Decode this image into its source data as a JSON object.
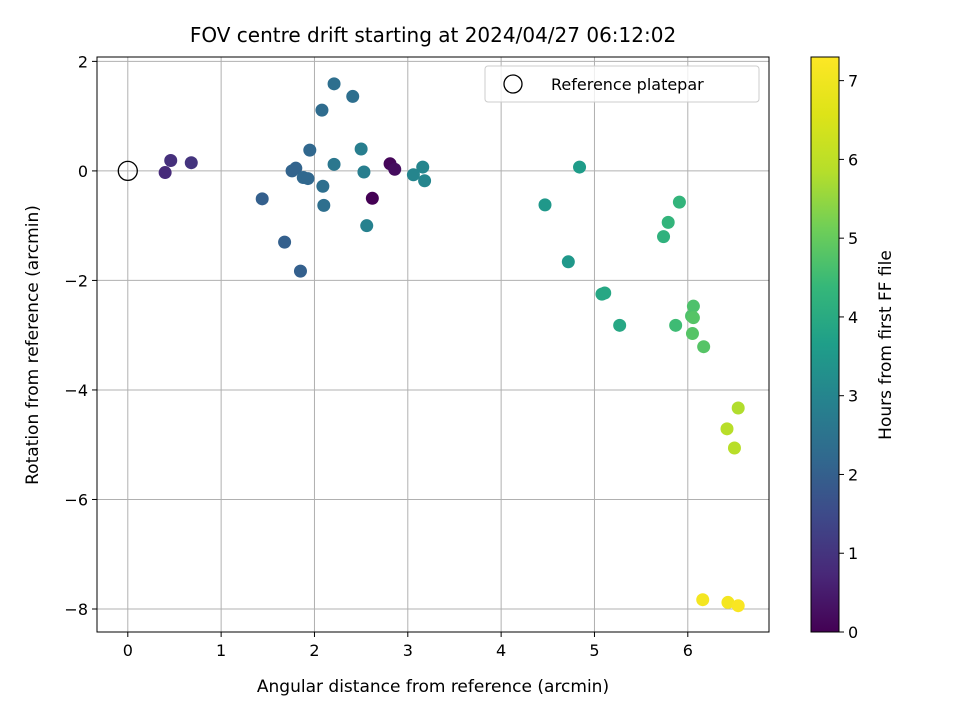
{
  "chart_data": {
    "type": "scatter",
    "title": "FOV centre drift starting at 2024/04/27 06:12:02",
    "xlabel": "Angular distance from reference (arcmin)",
    "ylabel": "Rotation from reference (arcmin)",
    "xlim": [
      -0.33,
      6.87
    ],
    "ylim": [
      -8.42,
      2.08
    ],
    "xticks": [
      0,
      1,
      2,
      3,
      4,
      5,
      6
    ],
    "yticks": [
      -8,
      -6,
      -4,
      -2,
      0,
      2
    ],
    "grid": true,
    "legend": {
      "position": "top-right",
      "entries": [
        "Reference platepar"
      ]
    },
    "reference_point": {
      "x": 0,
      "y": 0,
      "label": "Reference platepar"
    },
    "colorbar": {
      "label": "Hours from first FF file",
      "min": 0,
      "max": 7.3,
      "ticks": [
        0,
        1,
        2,
        3,
        4,
        5,
        6,
        7
      ],
      "colormap": "viridis"
    },
    "points": [
      {
        "x": 2.62,
        "y": -0.5,
        "c": 0.0
      },
      {
        "x": 2.81,
        "y": 0.13,
        "c": 0.1
      },
      {
        "x": 2.86,
        "y": 0.03,
        "c": 0.2
      },
      {
        "x": 0.4,
        "y": -0.03,
        "c": 0.8
      },
      {
        "x": 0.46,
        "y": 0.19,
        "c": 0.9
      },
      {
        "x": 0.68,
        "y": 0.15,
        "c": 1.0
      },
      {
        "x": 1.44,
        "y": -0.51,
        "c": 2.0
      },
      {
        "x": 1.68,
        "y": -1.3,
        "c": 2.0
      },
      {
        "x": 1.85,
        "y": -1.83,
        "c": 2.0
      },
      {
        "x": 1.76,
        "y": 0.0,
        "c": 2.1
      },
      {
        "x": 1.8,
        "y": 0.05,
        "c": 2.1
      },
      {
        "x": 1.88,
        "y": -0.12,
        "c": 2.2
      },
      {
        "x": 1.93,
        "y": -0.14,
        "c": 2.2
      },
      {
        "x": 1.95,
        "y": 0.38,
        "c": 2.2
      },
      {
        "x": 2.08,
        "y": 1.11,
        "c": 2.3
      },
      {
        "x": 2.09,
        "y": -0.28,
        "c": 2.4
      },
      {
        "x": 2.1,
        "y": -0.63,
        "c": 2.4
      },
      {
        "x": 2.21,
        "y": 1.59,
        "c": 2.4
      },
      {
        "x": 2.21,
        "y": 0.12,
        "c": 2.6
      },
      {
        "x": 2.41,
        "y": 1.36,
        "c": 2.4
      },
      {
        "x": 2.5,
        "y": 0.4,
        "c": 2.8
      },
      {
        "x": 2.53,
        "y": -0.02,
        "c": 2.8
      },
      {
        "x": 2.56,
        "y": -1.0,
        "c": 2.9
      },
      {
        "x": 3.06,
        "y": -0.07,
        "c": 3.0
      },
      {
        "x": 3.16,
        "y": 0.07,
        "c": 3.0
      },
      {
        "x": 3.18,
        "y": -0.18,
        "c": 3.0
      },
      {
        "x": 4.47,
        "y": -0.62,
        "c": 3.5
      },
      {
        "x": 4.72,
        "y": -1.66,
        "c": 3.5
      },
      {
        "x": 4.84,
        "y": 0.07,
        "c": 3.6
      },
      {
        "x": 5.08,
        "y": -2.25,
        "c": 3.9
      },
      {
        "x": 5.11,
        "y": -2.23,
        "c": 3.9
      },
      {
        "x": 5.27,
        "y": -2.82,
        "c": 3.9
      },
      {
        "x": 5.74,
        "y": -1.2,
        "c": 4.2
      },
      {
        "x": 5.79,
        "y": -0.94,
        "c": 4.3
      },
      {
        "x": 5.91,
        "y": -0.57,
        "c": 4.3
      },
      {
        "x": 5.87,
        "y": -2.82,
        "c": 4.5
      },
      {
        "x": 6.04,
        "y": -2.65,
        "c": 4.7
      },
      {
        "x": 6.06,
        "y": -2.47,
        "c": 4.7
      },
      {
        "x": 6.06,
        "y": -2.68,
        "c": 4.8
      },
      {
        "x": 6.05,
        "y": -2.97,
        "c": 4.8
      },
      {
        "x": 6.17,
        "y": -3.21,
        "c": 4.8
      },
      {
        "x": 6.54,
        "y": -4.33,
        "c": 5.8
      },
      {
        "x": 6.42,
        "y": -4.71,
        "c": 5.9
      },
      {
        "x": 6.5,
        "y": -5.06,
        "c": 5.9
      },
      {
        "x": 6.16,
        "y": -7.83,
        "c": 7.1
      },
      {
        "x": 6.43,
        "y": -7.88,
        "c": 7.1
      },
      {
        "x": 6.54,
        "y": -7.94,
        "c": 7.2
      }
    ]
  }
}
